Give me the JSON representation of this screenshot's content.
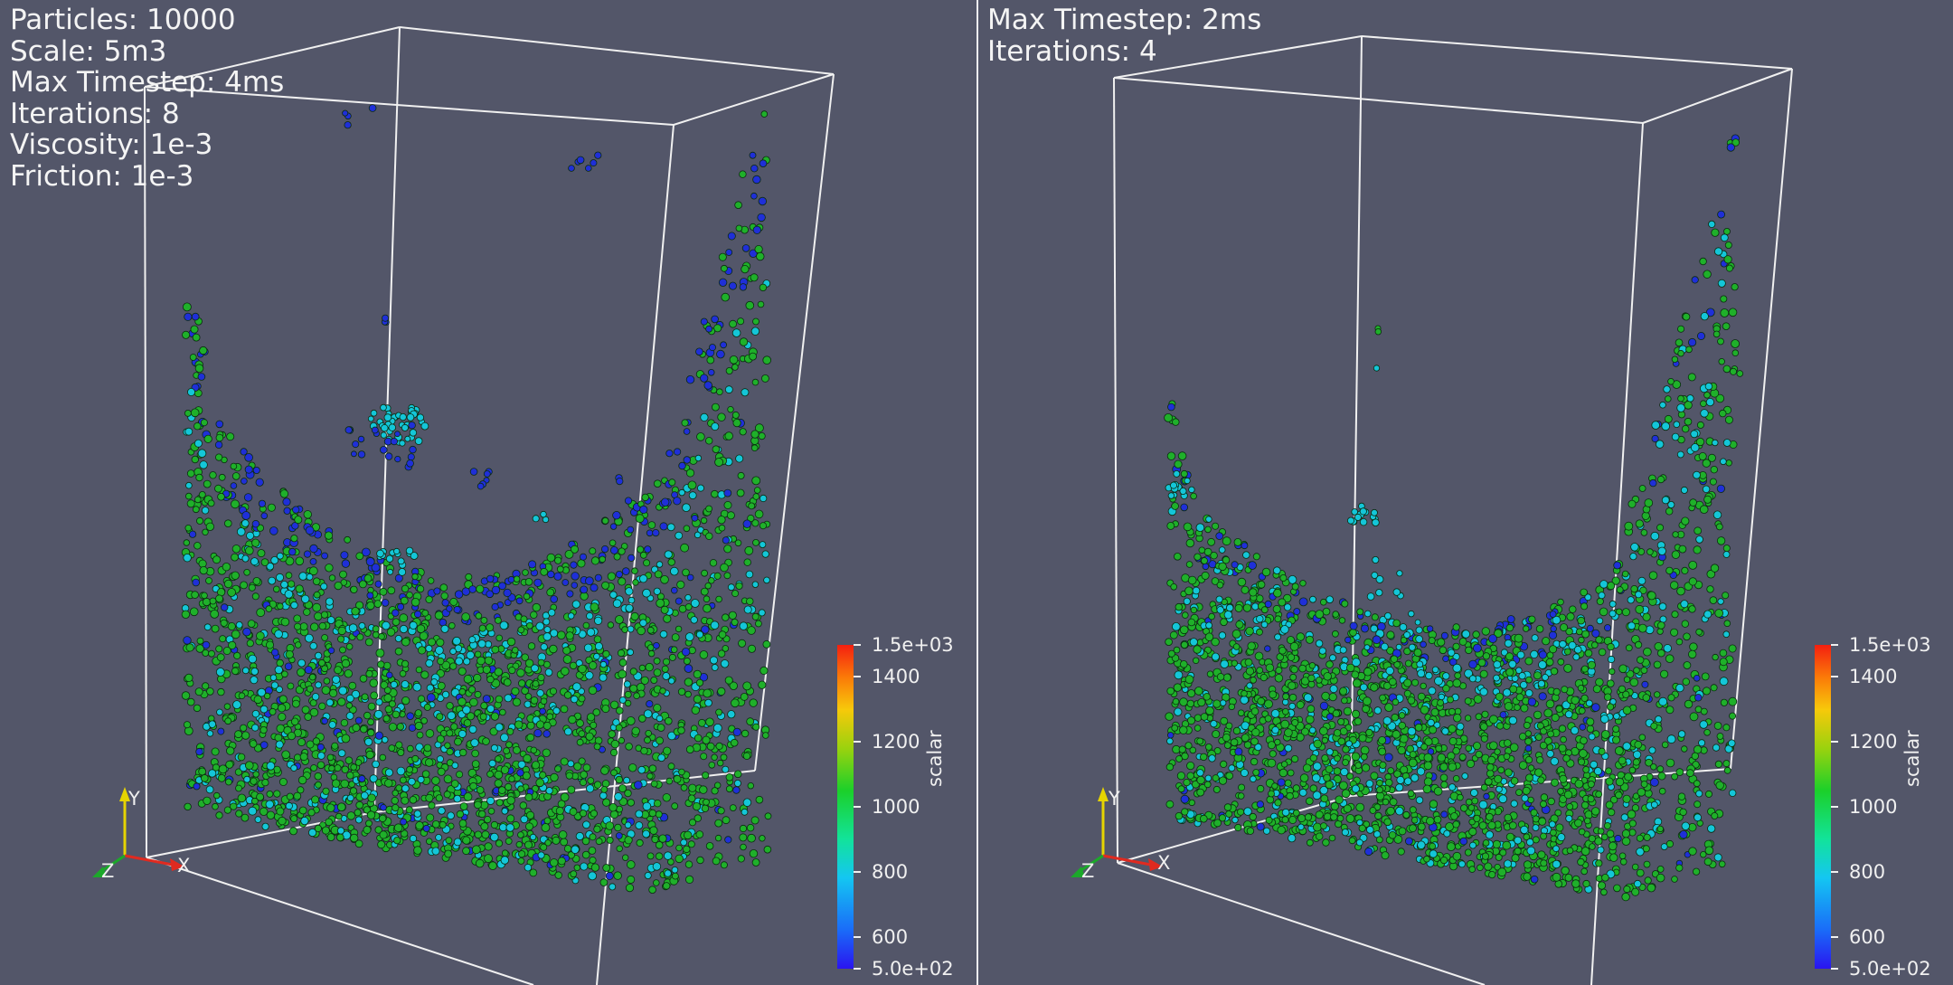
{
  "views": [
    {
      "id": "left",
      "info": [
        "Particles: 10000",
        "Scale: 5m3",
        "Max Timestep: 4ms",
        "Iterations: 8",
        "Viscosity: 1e-3",
        "Friction: 1e-3"
      ],
      "colorbar": {
        "title": "scalar",
        "labels": [
          "1.5e+03",
          "1400",
          "1200",
          "1000",
          "800",
          "600",
          "5.0e+02"
        ]
      },
      "axes": {
        "x": "X",
        "y": "Y",
        "z": "Z"
      }
    },
    {
      "id": "right",
      "info": [
        "Max Timestep: 2ms",
        "Iterations: 4"
      ],
      "colorbar": {
        "title": "scalar",
        "labels": [
          "1.5e+03",
          "1400",
          "1200",
          "1000",
          "800",
          "600",
          "5.0e+02"
        ]
      },
      "axes": {
        "x": "X",
        "y": "Y",
        "z": "Z"
      }
    }
  ],
  "colors": {
    "background": "#535669",
    "box_edge": "#f0f0f0",
    "particle_green": "#1fb02a",
    "particle_cyan": "#14c6d8",
    "particle_blue": "#1f2fd8"
  }
}
